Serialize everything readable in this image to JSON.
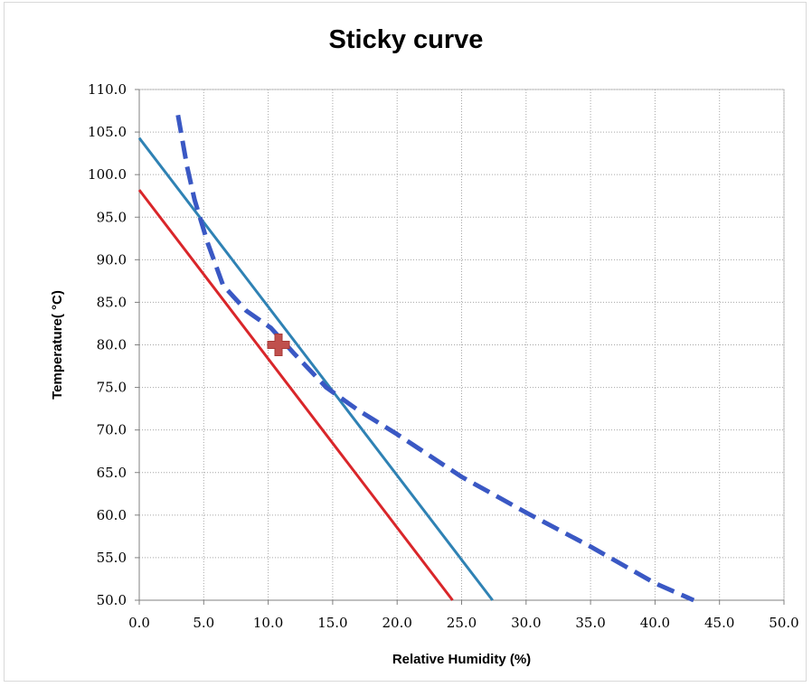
{
  "chart_data": {
    "type": "line",
    "title": "Sticky curve",
    "xlabel": "Relative Humidity (%)",
    "ylabel": "Temperature( °C)",
    "xlim": [
      0,
      50
    ],
    "ylim": [
      50,
      110
    ],
    "x_ticks": [
      "0.0",
      "5.0",
      "10.0",
      "15.0",
      "20.0",
      "25.0",
      "30.0",
      "35.0",
      "40.0",
      "45.0",
      "50.0"
    ],
    "y_ticks": [
      "50.0",
      "55.0",
      "60.0",
      "65.0",
      "70.0",
      "75.0",
      "80.0",
      "85.0",
      "90.0",
      "95.0",
      "100.0",
      "105.0",
      "110.0"
    ],
    "grid": true,
    "series": [
      {
        "color": "#d9262a",
        "style": "solid",
        "points": [
          [
            0,
            98.2
          ],
          [
            24.3,
            50
          ]
        ]
      },
      {
        "color": "#2f82b4",
        "style": "solid",
        "points": [
          [
            0,
            104.3
          ],
          [
            27.4,
            50
          ]
        ]
      },
      {
        "color": "#3a58c4",
        "style": "dashed",
        "points": [
          [
            3.0,
            107.0
          ],
          [
            3.7,
            101.0
          ],
          [
            4.3,
            97.0
          ],
          [
            5.3,
            92.0
          ],
          [
            6.5,
            87.0
          ],
          [
            8.3,
            84.0
          ],
          [
            10.2,
            82.0
          ],
          [
            12.0,
            79.0
          ],
          [
            14.5,
            75.0
          ],
          [
            17.0,
            72.3
          ],
          [
            20.0,
            69.5
          ],
          [
            25.0,
            64.5
          ],
          [
            30.0,
            60.3
          ],
          [
            35.0,
            56.3
          ],
          [
            40.0,
            52.0
          ],
          [
            43.0,
            50.0
          ]
        ]
      },
      {
        "color": "#c0504d",
        "style": "marker",
        "marker": "cross",
        "points": [
          [
            10.8,
            80.0
          ]
        ]
      }
    ]
  }
}
